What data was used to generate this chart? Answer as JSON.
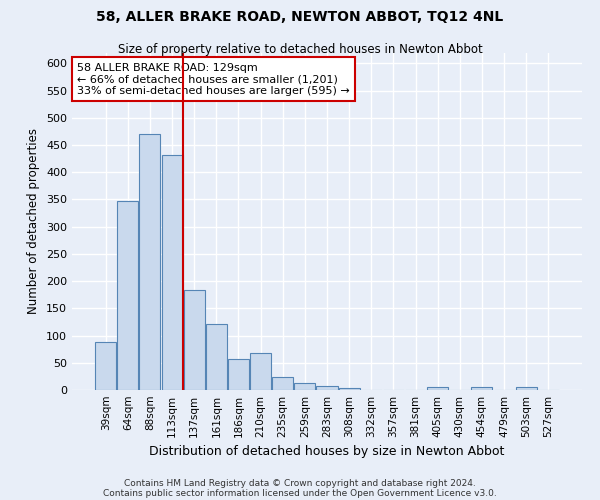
{
  "title": "58, ALLER BRAKE ROAD, NEWTON ABBOT, TQ12 4NL",
  "subtitle": "Size of property relative to detached houses in Newton Abbot",
  "xlabel": "Distribution of detached houses by size in Newton Abbot",
  "ylabel": "Number of detached properties",
  "categories": [
    "39sqm",
    "64sqm",
    "88sqm",
    "113sqm",
    "137sqm",
    "161sqm",
    "186sqm",
    "210sqm",
    "235sqm",
    "259sqm",
    "283sqm",
    "308sqm",
    "332sqm",
    "357sqm",
    "381sqm",
    "405sqm",
    "430sqm",
    "454sqm",
    "479sqm",
    "503sqm",
    "527sqm"
  ],
  "values": [
    89,
    347,
    470,
    432,
    183,
    122,
    57,
    68,
    24,
    12,
    7,
    4,
    0,
    0,
    0,
    5,
    0,
    5,
    0,
    5,
    0
  ],
  "bar_color": "#c9d9ed",
  "bar_edge_color": "#5585b5",
  "red_line_index": 4,
  "annotation_line1": "58 ALLER BRAKE ROAD: 129sqm",
  "annotation_line2": "← 66% of detached houses are smaller (1,201)",
  "annotation_line3": "33% of semi-detached houses are larger (595) →",
  "annotation_box_facecolor": "#ffffff",
  "annotation_box_edgecolor": "#cc0000",
  "ylim": [
    0,
    620
  ],
  "yticks": [
    0,
    50,
    100,
    150,
    200,
    250,
    300,
    350,
    400,
    450,
    500,
    550,
    600
  ],
  "footer1": "Contains HM Land Registry data © Crown copyright and database right 2024.",
  "footer2": "Contains public sector information licensed under the Open Government Licence v3.0.",
  "bg_color": "#e8eef8",
  "title_fontsize": 10,
  "subtitle_fontsize": 8.5,
  "xlabel_fontsize": 9,
  "ylabel_fontsize": 8.5,
  "tick_fontsize": 8,
  "xtick_fontsize": 7.5,
  "footer_fontsize": 6.5,
  "annotation_fontsize": 8
}
